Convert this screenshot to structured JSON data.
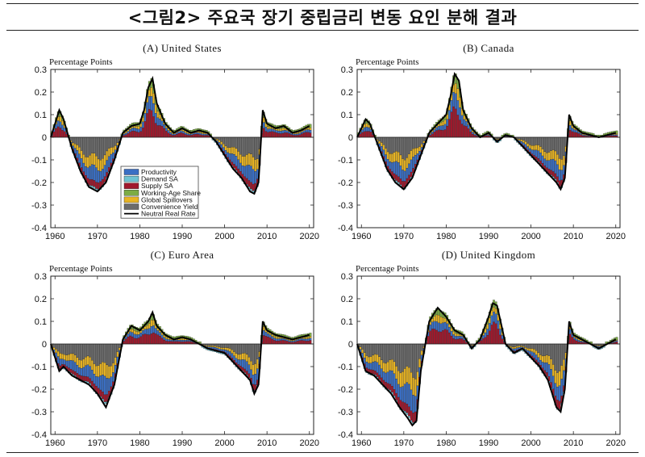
{
  "figure_title": "<그림2> 주요국 장기 중립금리 변동 요인 분해 결과",
  "colors": {
    "Productivity": "#3a6fc4",
    "Demand SA": "#6fc3d3",
    "Supply SA": "#a0182c",
    "Working-Age Share": "#7cac45",
    "Global Spillovers": "#e8b423",
    "Convenience Yield": "#6b6b6b",
    "Neutral Real Rate": "#000000"
  },
  "chart_data": [
    {
      "panel": "(A) United States",
      "type": "bar",
      "stacked": true,
      "ylabel": "Percentage Points",
      "ylim": [
        -0.4,
        0.3
      ],
      "yticks": [
        "0.3",
        "0.2",
        "0.1",
        "0",
        "-0.1",
        "-0.2",
        "-0.3",
        "-0.4"
      ],
      "xlim": [
        1959,
        2021
      ],
      "xticks": [
        "1960",
        "1970",
        "1980",
        "1990",
        "2000",
        "2010",
        "2020"
      ],
      "legend": [
        "Productivity",
        "Demand SA",
        "Supply SA",
        "Working-Age Share",
        "Global Spillovers",
        "Convenience Yield",
        "Neutral Real Rate"
      ],
      "neutral_real_rate": {
        "x": [
          1959,
          1961,
          1962,
          1964,
          1966,
          1968,
          1970,
          1972,
          1974,
          1976,
          1978,
          1980,
          1981,
          1982,
          1983,
          1984,
          1986,
          1988,
          1990,
          1992,
          1994,
          1996,
          1998,
          2000,
          2002,
          2004,
          2006,
          2007,
          2008,
          2009,
          2010,
          2012,
          2014,
          2016,
          2018,
          2020
        ],
        "y": [
          0,
          0.12,
          0.08,
          -0.05,
          -0.15,
          -0.22,
          -0.24,
          -0.2,
          -0.1,
          0.02,
          0.05,
          0.06,
          0.12,
          0.22,
          0.26,
          0.15,
          0.06,
          0.02,
          0.04,
          0.02,
          0.03,
          0.02,
          -0.02,
          -0.08,
          -0.14,
          -0.18,
          -0.24,
          -0.25,
          -0.2,
          0.12,
          0.06,
          0.04,
          0.05,
          0.02,
          0.03,
          0.05
        ]
      }
    },
    {
      "panel": "(B) Canada",
      "type": "bar",
      "stacked": true,
      "ylabel": "Percentage Points",
      "ylim": [
        -0.4,
        0.3
      ],
      "yticks": [
        "0.3",
        "0.2",
        "0.1",
        "0",
        "-0.1",
        "-0.2",
        "-0.3",
        "-0.4"
      ],
      "xlim": [
        1959,
        2021
      ],
      "xticks": [
        "1960",
        "1970",
        "1980",
        "1990",
        "2000",
        "2010",
        "2020"
      ],
      "neutral_real_rate": {
        "x": [
          1959,
          1961,
          1962,
          1964,
          1966,
          1968,
          1970,
          1972,
          1974,
          1976,
          1978,
          1980,
          1981,
          1982,
          1983,
          1984,
          1986,
          1988,
          1990,
          1992,
          1994,
          1996,
          1998,
          2000,
          2002,
          2004,
          2006,
          2007,
          2008,
          2009,
          2010,
          2012,
          2014,
          2016,
          2018,
          2020
        ],
        "y": [
          0,
          0.08,
          0.06,
          -0.04,
          -0.14,
          -0.2,
          -0.23,
          -0.18,
          -0.08,
          0.02,
          0.06,
          0.1,
          0.18,
          0.28,
          0.25,
          0.12,
          0.04,
          0.0,
          0.02,
          -0.02,
          0.01,
          0.0,
          -0.04,
          -0.08,
          -0.12,
          -0.16,
          -0.2,
          -0.23,
          -0.18,
          0.1,
          0.05,
          0.02,
          0.01,
          0.0,
          0.01,
          0.02
        ]
      }
    },
    {
      "panel": "(C) Euro Area",
      "type": "bar",
      "stacked": true,
      "ylabel": "Percentage Points",
      "ylim": [
        -0.4,
        0.3
      ],
      "yticks": [
        "0.3",
        "0.2",
        "0.1",
        "0",
        "-0.1",
        "-0.2",
        "-0.3",
        "-0.4"
      ],
      "xlim": [
        1959,
        2021
      ],
      "xticks": [
        "1960",
        "1970",
        "1980",
        "1990",
        "2000",
        "2010",
        "2020"
      ],
      "neutral_real_rate": {
        "x": [
          1959,
          1961,
          1962,
          1964,
          1966,
          1968,
          1970,
          1972,
          1974,
          1976,
          1978,
          1980,
          1982,
          1983,
          1984,
          1986,
          1988,
          1990,
          1992,
          1994,
          1996,
          1998,
          2000,
          2002,
          2004,
          2006,
          2007,
          2008,
          2009,
          2010,
          2012,
          2014,
          2016,
          2018,
          2020
        ],
        "y": [
          0,
          -0.12,
          -0.1,
          -0.14,
          -0.16,
          -0.18,
          -0.22,
          -0.28,
          -0.18,
          0.02,
          0.08,
          0.06,
          0.1,
          0.14,
          0.08,
          0.04,
          0.02,
          0.03,
          0.02,
          0.0,
          -0.02,
          -0.03,
          -0.04,
          -0.08,
          -0.12,
          -0.16,
          -0.22,
          -0.18,
          0.1,
          0.06,
          0.04,
          0.03,
          0.02,
          0.03,
          0.04
        ]
      }
    },
    {
      "panel": "(D) United Kingdom",
      "type": "bar",
      "stacked": true,
      "ylabel": "Percentage Points",
      "ylim": [
        -0.4,
        0.3
      ],
      "yticks": [
        "0.3",
        "0.2",
        "0.1",
        "0",
        "-0.1",
        "-0.2",
        "-0.3",
        "-0.4"
      ],
      "xlim": [
        1959,
        2021
      ],
      "xticks": [
        "1960",
        "1970",
        "1980",
        "1990",
        "2000",
        "2010",
        "2020"
      ],
      "neutral_real_rate": {
        "x": [
          1959,
          1961,
          1963,
          1965,
          1967,
          1969,
          1971,
          1972,
          1973,
          1974,
          1976,
          1978,
          1980,
          1982,
          1984,
          1986,
          1988,
          1990,
          1991,
          1992,
          1994,
          1996,
          1998,
          2000,
          2002,
          2004,
          2006,
          2007,
          2008,
          2009,
          2010,
          2012,
          2014,
          2016,
          2018,
          2020
        ],
        "y": [
          0,
          -0.12,
          -0.14,
          -0.18,
          -0.22,
          -0.28,
          -0.33,
          -0.36,
          -0.34,
          -0.12,
          0.1,
          0.16,
          0.12,
          0.06,
          0.04,
          -0.02,
          0.02,
          0.12,
          0.18,
          0.17,
          0.0,
          -0.04,
          -0.02,
          -0.06,
          -0.1,
          -0.16,
          -0.28,
          -0.3,
          -0.2,
          0.1,
          0.04,
          0.02,
          0.0,
          -0.02,
          0.0,
          0.02
        ]
      }
    }
  ]
}
